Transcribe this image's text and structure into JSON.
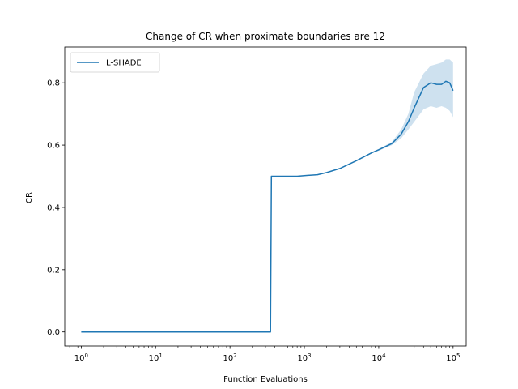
{
  "chart_data": {
    "type": "line",
    "title": "Change of CR when proximate boundaries are 12",
    "xlabel": "Function Evaluations",
    "ylabel": "CR",
    "xscale": "log",
    "xlim": [
      0.6,
      150000
    ],
    "ylim": [
      -0.045,
      0.915
    ],
    "x_ticks": [
      {
        "value": 1,
        "base": "10",
        "exp": "0"
      },
      {
        "value": 10,
        "base": "10",
        "exp": "1"
      },
      {
        "value": 100,
        "base": "10",
        "exp": "2"
      },
      {
        "value": 1000,
        "base": "10",
        "exp": "3"
      },
      {
        "value": 10000,
        "base": "10",
        "exp": "4"
      },
      {
        "value": 100000,
        "base": "10",
        "exp": "5"
      }
    ],
    "y_ticks": [
      {
        "value": 0.0,
        "label": "0.0"
      },
      {
        "value": 0.2,
        "label": "0.2"
      },
      {
        "value": 0.4,
        "label": "0.4"
      },
      {
        "value": 0.6,
        "label": "0.6"
      },
      {
        "value": 0.8,
        "label": "0.8"
      }
    ],
    "grid": false,
    "legend_position": "upper-left",
    "series": [
      {
        "name": "L-SHADE",
        "color": "#1f77b4",
        "x": [
          1,
          10,
          100,
          350,
          360,
          370,
          500,
          800,
          1000,
          1500,
          2000,
          3000,
          5000,
          8000,
          10000,
          15000,
          20000,
          25000,
          30000,
          40000,
          50000,
          60000,
          70000,
          80000,
          90000,
          100000
        ],
        "y": [
          0.0,
          0.0,
          0.0,
          0.0,
          0.5,
          0.5,
          0.5,
          0.5,
          0.502,
          0.505,
          0.512,
          0.525,
          0.55,
          0.575,
          0.585,
          0.605,
          0.635,
          0.675,
          0.72,
          0.785,
          0.8,
          0.795,
          0.795,
          0.805,
          0.8,
          0.775
        ],
        "band_lower": [
          0.0,
          0.0,
          0.0,
          0.0,
          0.5,
          0.5,
          0.5,
          0.5,
          0.502,
          0.505,
          0.512,
          0.525,
          0.55,
          0.573,
          0.582,
          0.6,
          0.622,
          0.65,
          0.675,
          0.715,
          0.725,
          0.72,
          0.725,
          0.72,
          0.71,
          0.69
        ],
        "band_upper": [
          0.0,
          0.0,
          0.0,
          0.0,
          0.5,
          0.5,
          0.5,
          0.5,
          0.502,
          0.505,
          0.512,
          0.525,
          0.55,
          0.577,
          0.588,
          0.61,
          0.65,
          0.7,
          0.77,
          0.83,
          0.855,
          0.86,
          0.865,
          0.875,
          0.875,
          0.865
        ]
      }
    ]
  }
}
